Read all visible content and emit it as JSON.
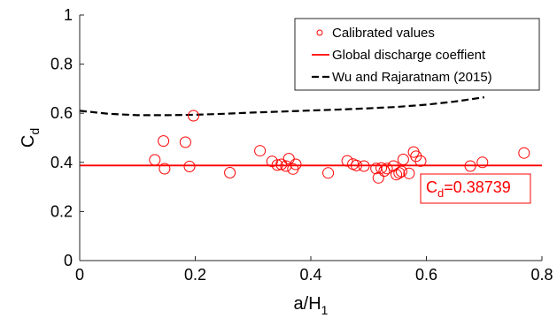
{
  "chart_data": {
    "type": "scatter",
    "xlabel": "a/H",
    "xlabel_sub": "1",
    "ylabel": "C",
    "ylabel_sub": "d",
    "xlim": [
      0,
      0.8
    ],
    "ylim": [
      0,
      1
    ],
    "xticks": [
      "0",
      "0.2",
      "0.4",
      "0.6",
      "0.8"
    ],
    "yticks": [
      "0",
      "0.2",
      "0.4",
      "0.6",
      "0.8",
      "1"
    ],
    "xtick_values": [
      0,
      0.2,
      0.4,
      0.6,
      0.8
    ],
    "ytick_values": [
      0,
      0.2,
      0.4,
      0.6,
      0.8,
      1
    ],
    "grid": false,
    "legend_position": "top-right",
    "colors": {
      "calibrated": "#ff0000",
      "global": "#ff0000",
      "wu": "#000000"
    },
    "series": [
      {
        "name": "Calibrated values",
        "kind": "scatter",
        "x": [
          0.13,
          0.145,
          0.147,
          0.183,
          0.19,
          0.197,
          0.26,
          0.312,
          0.333,
          0.342,
          0.349,
          0.357,
          0.362,
          0.369,
          0.374,
          0.43,
          0.463,
          0.473,
          0.479,
          0.492,
          0.513,
          0.517,
          0.522,
          0.527,
          0.532,
          0.543,
          0.548,
          0.553,
          0.557,
          0.56,
          0.57,
          0.578,
          0.582,
          0.59,
          0.676,
          0.697,
          0.769
        ],
        "y": [
          0.41,
          0.487,
          0.374,
          0.482,
          0.383,
          0.59,
          0.358,
          0.447,
          0.404,
          0.389,
          0.392,
          0.385,
          0.415,
          0.373,
          0.392,
          0.357,
          0.406,
          0.393,
          0.387,
          0.385,
          0.375,
          0.337,
          0.377,
          0.365,
          0.375,
          0.385,
          0.35,
          0.357,
          0.363,
          0.412,
          0.355,
          0.442,
          0.425,
          0.405,
          0.385,
          0.4,
          0.438
        ]
      },
      {
        "name": "Global discharge coeffient",
        "kind": "hline",
        "y": 0.38739
      },
      {
        "name": "Wu and Rajaratnam (2015)",
        "kind": "dashed-line",
        "x": [
          0,
          0.05,
          0.1,
          0.15,
          0.2,
          0.25,
          0.3,
          0.35,
          0.4,
          0.45,
          0.5,
          0.55,
          0.6,
          0.65,
          0.7
        ],
        "y": [
          0.61,
          0.598,
          0.592,
          0.592,
          0.594,
          0.598,
          0.603,
          0.607,
          0.611,
          0.615,
          0.62,
          0.626,
          0.635,
          0.648,
          0.665
        ]
      }
    ],
    "annotation": {
      "text_main": "C",
      "text_sub": "d",
      "text_rest": "=0.38739",
      "x": 0.61,
      "y": 0.28
    }
  }
}
